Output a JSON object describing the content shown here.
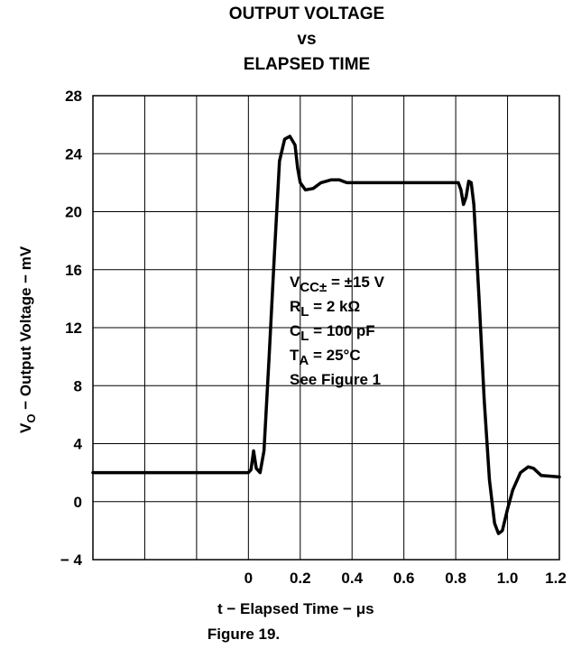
{
  "chart_data": {
    "type": "line",
    "title": [
      "OUTPUT VOLTAGE",
      "vs",
      "ELAPSED TIME"
    ],
    "xlabel": "t − Elapsed Time − μs",
    "ylabel": {
      "prefix": "V",
      "sub": "O",
      "rest": " − Output Voltage − mV"
    },
    "xlim": [
      -0.6,
      1.2
    ],
    "ylim": [
      -4,
      28
    ],
    "xticks": [
      "0",
      "0.2",
      "0.4",
      "0.6",
      "0.8",
      "1.0",
      "1.2"
    ],
    "xtick_values": [
      0,
      0.2,
      0.4,
      0.6,
      0.8,
      1.0,
      1.2
    ],
    "yticks": [
      "28",
      "24",
      "20",
      "16",
      "12",
      "8",
      "4",
      "0",
      "− 4"
    ],
    "ytick_values": [
      28,
      24,
      20,
      16,
      12,
      8,
      4,
      0,
      -4
    ],
    "grid": true,
    "series": [
      {
        "values": [
          [
            -0.6,
            2.0
          ],
          [
            0.0,
            2.0
          ],
          [
            0.01,
            2.2
          ],
          [
            0.02,
            3.5
          ],
          [
            0.03,
            2.3
          ],
          [
            0.045,
            2.0
          ],
          [
            0.06,
            3.5
          ],
          [
            0.08,
            10.0
          ],
          [
            0.1,
            17.0
          ],
          [
            0.12,
            23.5
          ],
          [
            0.14,
            25.0
          ],
          [
            0.16,
            25.2
          ],
          [
            0.18,
            24.6
          ],
          [
            0.19,
            23.0
          ],
          [
            0.2,
            22.0
          ],
          [
            0.22,
            21.5
          ],
          [
            0.25,
            21.6
          ],
          [
            0.28,
            22.0
          ],
          [
            0.32,
            22.2
          ],
          [
            0.35,
            22.2
          ],
          [
            0.38,
            22.0
          ],
          [
            0.5,
            22.0
          ],
          [
            0.7,
            22.0
          ],
          [
            0.81,
            22.0
          ],
          [
            0.82,
            21.5
          ],
          [
            0.83,
            20.5
          ],
          [
            0.84,
            21.0
          ],
          [
            0.85,
            22.1
          ],
          [
            0.86,
            22.0
          ],
          [
            0.87,
            20.5
          ],
          [
            0.89,
            14.0
          ],
          [
            0.91,
            7.0
          ],
          [
            0.93,
            1.5
          ],
          [
            0.95,
            -1.5
          ],
          [
            0.965,
            -2.2
          ],
          [
            0.98,
            -2.0
          ],
          [
            1.0,
            -0.5
          ],
          [
            1.02,
            0.8
          ],
          [
            1.05,
            2.0
          ],
          [
            1.08,
            2.4
          ],
          [
            1.1,
            2.3
          ],
          [
            1.13,
            1.8
          ],
          [
            1.2,
            1.7
          ]
        ]
      }
    ],
    "annotation": {
      "vcc": {
        "prefix": "V",
        "sub": "CC±",
        "rest": " = ±15 V"
      },
      "rl": {
        "prefix": "R",
        "sub": "L",
        "rest": " = 2 kΩ"
      },
      "cl": {
        "prefix": "C",
        "sub": "L",
        "rest": " = 100 pF"
      },
      "ta": {
        "prefix": "T",
        "sub": "A",
        "rest": " = 25°C"
      },
      "fig": "See Figure 1"
    },
    "caption": "Figure 19."
  }
}
